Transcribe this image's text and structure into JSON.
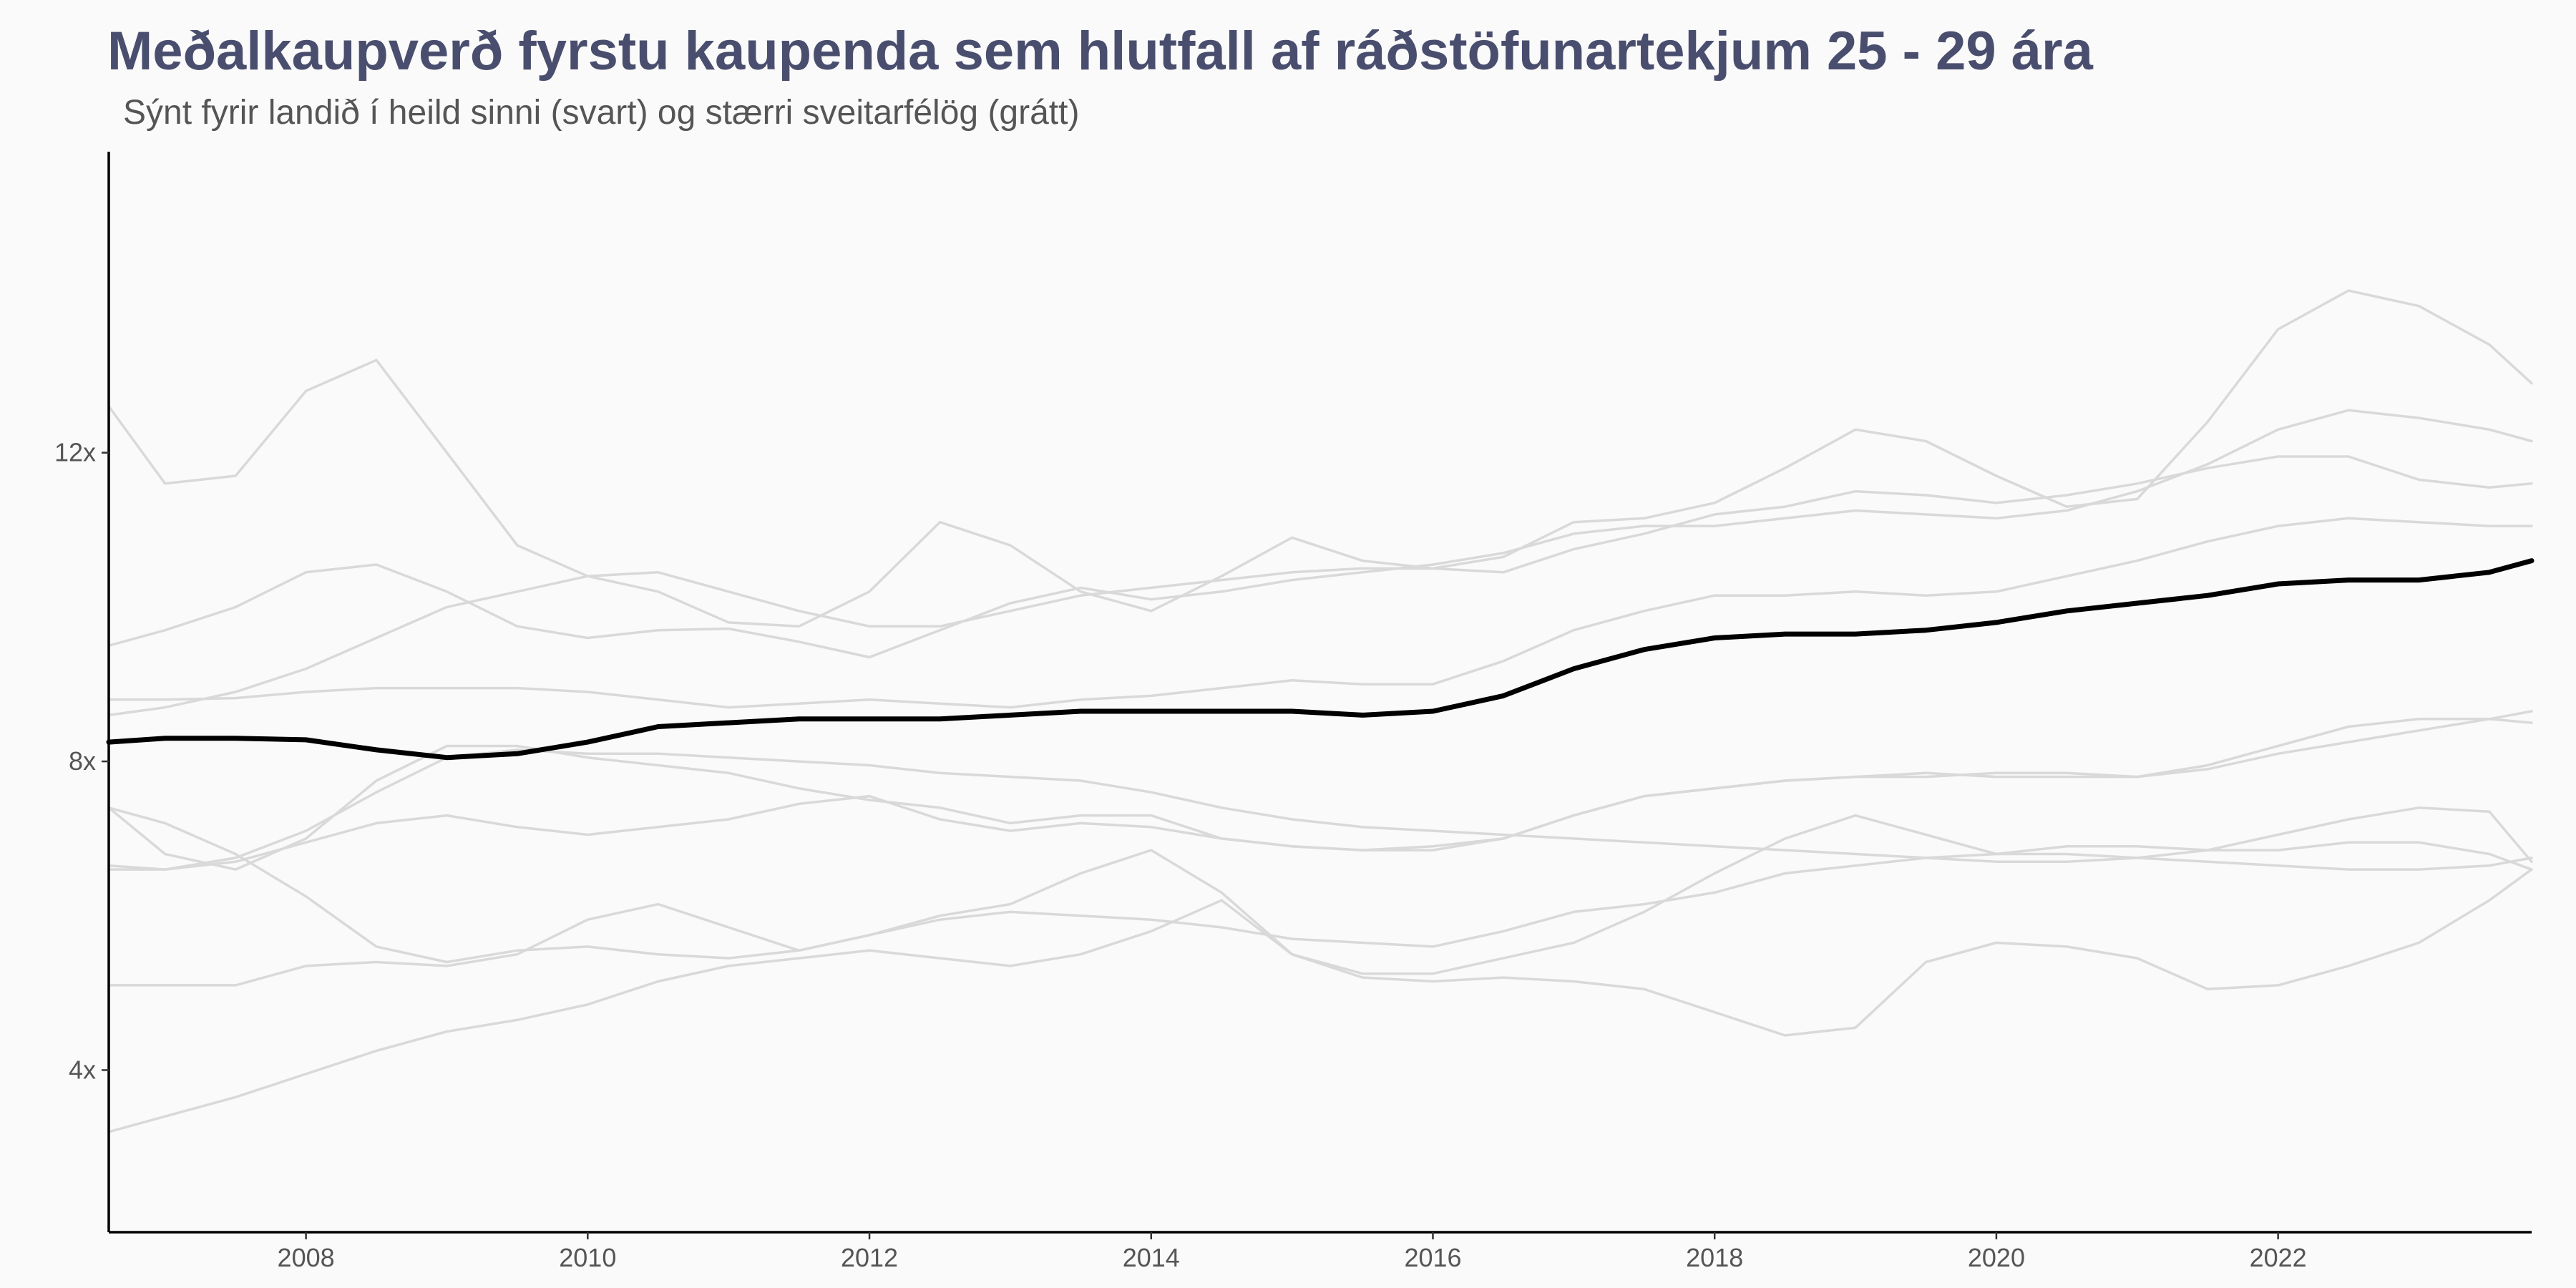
{
  "chart_data": {
    "type": "line",
    "title": "Meðalkaupverð fyrstu kaupenda sem hlutfall af ráðstöfunartekjum 25 - 29 ára",
    "subtitle": "Sýnt fyrir landið í heild sinni (svart) og stærri sveitarfélög (grátt)",
    "xlabel": "",
    "ylabel": "",
    "xlim": [
      2006.6,
      2023.8
    ],
    "ylim": [
      1.9,
      15.9
    ],
    "x_ticks": [
      2008,
      2010,
      2012,
      2014,
      2016,
      2018,
      2020,
      2022
    ],
    "x_tick_labels": [
      "2008",
      "2010",
      "2012",
      "2014",
      "2016",
      "2018",
      "2020",
      "2022"
    ],
    "y_ticks": [
      4,
      8,
      12
    ],
    "y_tick_labels": [
      "4x",
      "8x",
      "12x"
    ],
    "grid": false,
    "legend": "none",
    "colors": {
      "highlight": "#000000",
      "muted": "#d9d9d9",
      "title": "#4a4e6e",
      "background": "#fafafa"
    },
    "series": [
      {
        "color": "#000000",
        "highlight": true,
        "x": [
          2006.6,
          2007.0,
          2007.5,
          2008.0,
          2008.5,
          2009.0,
          2009.5,
          2010.0,
          2010.5,
          2011.0,
          2011.5,
          2012.0,
          2012.5,
          2013.0,
          2013.5,
          2014.0,
          2014.5,
          2015.0,
          2015.5,
          2016.0,
          2016.5,
          2017.0,
          2017.5,
          2018.0,
          2018.5,
          2019.0,
          2019.5,
          2020.0,
          2020.5,
          2021.0,
          2021.5,
          2022.0,
          2022.5,
          2023.0,
          2023.5,
          2023.8
        ],
        "y": [
          8.25,
          8.3,
          8.3,
          8.28,
          8.15,
          8.05,
          8.1,
          8.25,
          8.45,
          8.5,
          8.55,
          8.55,
          8.55,
          8.6,
          8.65,
          8.65,
          8.65,
          8.65,
          8.6,
          8.65,
          8.85,
          9.2,
          9.45,
          9.6,
          9.65,
          9.65,
          9.7,
          9.8,
          9.95,
          10.05,
          10.15,
          10.3,
          10.35,
          10.35,
          10.45,
          10.6
        ]
      },
      {
        "color": "#d9d9d9",
        "x": [
          2006.6,
          2007.0,
          2007.5,
          2008.0,
          2008.5,
          2009.0,
          2009.5,
          2010.0,
          2010.5,
          2011.0,
          2011.5,
          2012.0,
          2012.5,
          2013.0,
          2013.5,
          2014.0,
          2014.5,
          2015.0,
          2015.5,
          2016.0,
          2016.5,
          2017.0,
          2017.5,
          2018.0,
          2018.5,
          2019.0,
          2019.5,
          2020.0,
          2020.5,
          2021.0,
          2021.5,
          2022.0,
          2022.5,
          2023.0,
          2023.5,
          2023.8
        ],
        "y": [
          12.6,
          11.6,
          11.7,
          12.8,
          13.2,
          12.0,
          10.8,
          10.4,
          10.2,
          9.8,
          9.75,
          10.2,
          11.1,
          10.8,
          10.2,
          9.95,
          10.4,
          10.9,
          10.6,
          10.5,
          10.65,
          11.1,
          11.15,
          11.35,
          11.8,
          12.3,
          12.15,
          11.7,
          11.3,
          11.4,
          12.4,
          13.6,
          14.1,
          13.9,
          13.4,
          12.9
        ]
      },
      {
        "color": "#d9d9d9",
        "x": [
          2006.6,
          2007.0,
          2007.5,
          2008.0,
          2008.5,
          2009.0,
          2009.5,
          2010.0,
          2010.5,
          2011.0,
          2011.5,
          2012.0,
          2012.5,
          2013.0,
          2013.5,
          2014.0,
          2014.5,
          2015.0,
          2015.5,
          2016.0,
          2016.5,
          2017.0,
          2017.5,
          2018.0,
          2018.5,
          2019.0,
          2019.5,
          2020.0,
          2020.5,
          2021.0,
          2021.5,
          2022.0,
          2022.5,
          2023.0,
          2023.5,
          2023.8
        ],
        "y": [
          9.5,
          9.7,
          10.0,
          10.45,
          10.55,
          10.2,
          9.75,
          9.6,
          9.7,
          9.72,
          9.55,
          9.35,
          9.7,
          10.05,
          10.25,
          10.1,
          10.2,
          10.35,
          10.45,
          10.55,
          10.7,
          10.95,
          11.05,
          11.05,
          11.15,
          11.25,
          11.2,
          11.15,
          11.25,
          11.5,
          11.85,
          12.3,
          12.55,
          12.45,
          12.3,
          12.15
        ]
      },
      {
        "color": "#d9d9d9",
        "x": [
          2006.6,
          2007.0,
          2007.5,
          2008.0,
          2008.5,
          2009.0,
          2009.5,
          2010.0,
          2010.5,
          2011.0,
          2011.5,
          2012.0,
          2012.5,
          2013.0,
          2013.5,
          2014.0,
          2014.5,
          2015.0,
          2015.5,
          2016.0,
          2016.5,
          2017.0,
          2017.5,
          2018.0,
          2018.5,
          2019.0,
          2019.5,
          2020.0,
          2020.5,
          2021.0,
          2021.5,
          2022.0,
          2022.5,
          2023.0,
          2023.5,
          2023.8
        ],
        "y": [
          8.6,
          8.7,
          8.9,
          9.2,
          9.6,
          10.0,
          10.2,
          10.4,
          10.45,
          10.2,
          9.95,
          9.75,
          9.75,
          9.95,
          10.15,
          10.25,
          10.35,
          10.45,
          10.5,
          10.5,
          10.45,
          10.75,
          10.95,
          11.2,
          11.3,
          11.5,
          11.45,
          11.35,
          11.45,
          11.6,
          11.8,
          11.95,
          11.95,
          11.65,
          11.55,
          11.6
        ]
      },
      {
        "color": "#d9d9d9",
        "x": [
          2006.6,
          2007.0,
          2007.5,
          2008.0,
          2008.5,
          2009.0,
          2009.5,
          2010.0,
          2010.5,
          2011.0,
          2011.5,
          2012.0,
          2012.5,
          2013.0,
          2013.5,
          2014.0,
          2014.5,
          2015.0,
          2015.5,
          2016.0,
          2016.5,
          2017.0,
          2017.5,
          2018.0,
          2018.5,
          2019.0,
          2019.5,
          2020.0,
          2020.5,
          2021.0,
          2021.5,
          2022.0,
          2022.5,
          2023.0,
          2023.5,
          2023.8
        ],
        "y": [
          8.8,
          8.8,
          8.82,
          8.9,
          8.95,
          8.95,
          8.95,
          8.9,
          8.8,
          8.7,
          8.75,
          8.8,
          8.75,
          8.7,
          8.8,
          8.85,
          8.95,
          9.05,
          9.0,
          9.0,
          9.3,
          9.7,
          9.95,
          10.15,
          10.15,
          10.2,
          10.15,
          10.2,
          10.4,
          10.6,
          10.85,
          11.05,
          11.15,
          11.1,
          11.05,
          11.05
        ]
      },
      {
        "color": "#d9d9d9",
        "x": [
          2006.6,
          2007.0,
          2007.5,
          2008.0,
          2008.5,
          2009.0,
          2009.5,
          2010.0,
          2010.5,
          2011.0,
          2011.5,
          2012.0,
          2012.5,
          2013.0,
          2013.5,
          2014.0,
          2014.5,
          2015.0,
          2015.5,
          2016.0,
          2016.5,
          2017.0,
          2017.5,
          2018.0,
          2018.5,
          2019.0,
          2019.5,
          2020.0,
          2020.5,
          2021.0,
          2021.5,
          2022.0,
          2022.5,
          2023.0,
          2023.5,
          2023.8
        ],
        "y": [
          7.4,
          6.8,
          6.6,
          7.0,
          7.75,
          8.2,
          8.2,
          8.05,
          7.95,
          7.85,
          7.65,
          7.5,
          7.4,
          7.2,
          7.3,
          7.3,
          7.0,
          6.9,
          6.85,
          6.85,
          7.0,
          7.3,
          7.55,
          7.65,
          7.75,
          7.8,
          7.85,
          7.8,
          7.8,
          7.8,
          7.9,
          8.1,
          8.25,
          8.4,
          8.55,
          8.65
        ]
      },
      {
        "color": "#d9d9d9",
        "x": [
          2006.6,
          2007.0,
          2007.5,
          2008.0,
          2008.5,
          2009.0,
          2009.5,
          2010.0,
          2010.5,
          2011.0,
          2011.5,
          2012.0,
          2012.5,
          2013.0,
          2013.5,
          2014.0,
          2014.5,
          2015.0,
          2015.5,
          2016.0,
          2016.5,
          2017.0,
          2017.5,
          2018.0,
          2018.5,
          2019.0,
          2019.5,
          2020.0,
          2020.5,
          2021.0,
          2021.5,
          2022.0,
          2022.5,
          2023.0,
          2023.5,
          2023.8
        ],
        "y": [
          6.6,
          6.6,
          6.7,
          6.95,
          7.2,
          7.3,
          7.15,
          7.05,
          7.15,
          7.25,
          7.45,
          7.55,
          7.25,
          7.1,
          7.2,
          7.15,
          7.0,
          6.9,
          6.85,
          6.9,
          7.0,
          7.3,
          7.55,
          7.65,
          7.75,
          7.8,
          7.8,
          7.85,
          7.85,
          7.8,
          7.95,
          8.2,
          8.45,
          8.55,
          8.55,
          8.5
        ]
      },
      {
        "color": "#d9d9d9",
        "x": [
          2006.6,
          2007.0,
          2007.5,
          2008.0,
          2008.5,
          2009.0,
          2009.5,
          2010.0,
          2010.5,
          2011.0,
          2011.5,
          2012.0,
          2012.5,
          2013.0,
          2013.5,
          2014.0,
          2014.5,
          2015.0,
          2015.5,
          2016.0,
          2016.5,
          2017.0,
          2017.5,
          2018.0,
          2018.5,
          2019.0,
          2019.5,
          2020.0,
          2020.5,
          2021.0,
          2021.5,
          2022.0,
          2022.5,
          2023.0,
          2023.5,
          2023.8
        ],
        "y": [
          7.4,
          7.2,
          6.8,
          6.25,
          5.6,
          5.4,
          5.55,
          5.6,
          5.5,
          5.45,
          5.55,
          5.75,
          5.95,
          6.05,
          6.0,
          5.95,
          5.85,
          5.7,
          5.65,
          5.6,
          5.8,
          6.05,
          6.15,
          6.3,
          6.55,
          6.65,
          6.75,
          6.8,
          6.8,
          6.75,
          6.7,
          6.65,
          6.6,
          6.6,
          6.65,
          6.75
        ]
      },
      {
        "color": "#d9d9d9",
        "x": [
          2006.6,
          2007.0,
          2007.5,
          2008.0,
          2008.5,
          2009.0,
          2009.5,
          2010.0,
          2010.5,
          2011.0,
          2011.5,
          2012.0,
          2012.5,
          2013.0,
          2013.5,
          2014.0,
          2014.5,
          2015.0,
          2015.5,
          2016.0,
          2016.5,
          2017.0,
          2017.5,
          2018.0,
          2018.5,
          2019.0,
          2019.5,
          2020.0,
          2020.5,
          2021.0,
          2021.5,
          2022.0,
          2022.5,
          2023.0,
          2023.5,
          2023.8
        ],
        "y": [
          5.1,
          5.1,
          5.1,
          5.35,
          5.4,
          5.35,
          5.5,
          5.95,
          6.15,
          5.85,
          5.55,
          5.75,
          6.0,
          6.15,
          6.55,
          6.85,
          6.3,
          5.5,
          5.25,
          5.25,
          5.45,
          5.65,
          6.05,
          6.55,
          7.0,
          7.3,
          7.05,
          6.8,
          6.9,
          6.9,
          6.85,
          6.85,
          6.95,
          6.95,
          6.8,
          6.6
        ]
      },
      {
        "color": "#d9d9d9",
        "x": [
          2006.6,
          2007.0,
          2007.5,
          2008.0,
          2008.5,
          2009.0,
          2009.5,
          2010.0,
          2010.5,
          2011.0,
          2011.5,
          2012.0,
          2012.5,
          2013.0,
          2013.5,
          2014.0,
          2014.5,
          2015.0,
          2015.5,
          2016.0,
          2016.5,
          2017.0,
          2017.5,
          2018.0,
          2018.5,
          2019.0,
          2019.5,
          2020.0,
          2020.5,
          2021.0,
          2021.5,
          2022.0,
          2022.5,
          2023.0,
          2023.5,
          2023.8
        ],
        "y": [
          3.2,
          3.4,
          3.65,
          3.95,
          4.25,
          4.5,
          4.65,
          4.85,
          5.15,
          5.35,
          5.45,
          5.55,
          5.45,
          5.35,
          5.5,
          5.8,
          6.2,
          5.5,
          5.2,
          5.15,
          5.2,
          5.15,
          5.05,
          4.75,
          4.45,
          4.55,
          5.4,
          5.65,
          5.6,
          5.45,
          5.05,
          5.1,
          5.35,
          5.65,
          6.2,
          6.6
        ]
      },
      {
        "color": "#d9d9d9",
        "x": [
          2006.6,
          2007.0,
          2007.5,
          2008.0,
          2008.5,
          2009.0,
          2009.5,
          2010.0,
          2010.5,
          2011.0,
          2011.5,
          2012.0,
          2012.5,
          2013.0,
          2013.5,
          2014.0,
          2014.5,
          2015.0,
          2015.5,
          2016.0,
          2016.5,
          2017.0,
          2017.5,
          2018.0,
          2018.5,
          2019.0,
          2019.5,
          2020.0,
          2020.5,
          2021.0,
          2021.5,
          2022.0,
          2022.5,
          2023.0,
          2023.5,
          2023.8
        ],
        "y": [
          6.65,
          6.6,
          6.75,
          7.1,
          7.6,
          8.05,
          8.15,
          8.1,
          8.1,
          8.05,
          8.0,
          7.95,
          7.85,
          7.8,
          7.75,
          7.6,
          7.4,
          7.25,
          7.15,
          7.1,
          7.05,
          7.0,
          6.95,
          6.9,
          6.85,
          6.8,
          6.75,
          6.7,
          6.7,
          6.75,
          6.85,
          7.05,
          7.25,
          7.4,
          7.35,
          6.7
        ]
      }
    ]
  }
}
